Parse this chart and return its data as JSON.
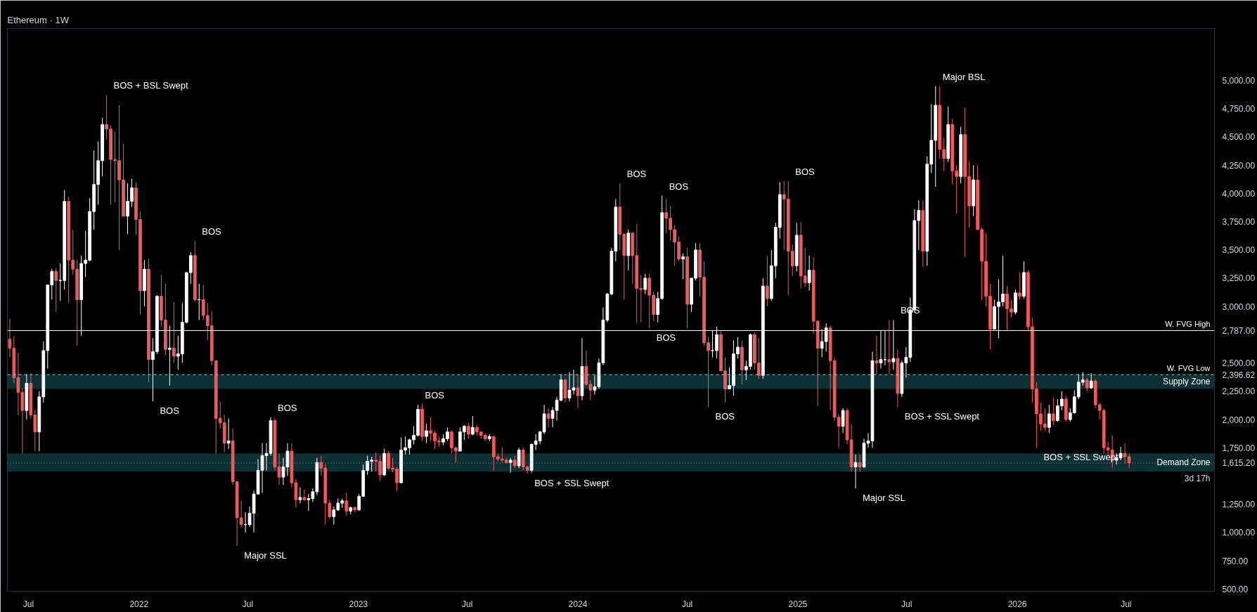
{
  "chart_data": {
    "type": "candlestick",
    "title": "Ethereum · 1W",
    "colors": [
      "#f05a5a",
      "#f05a5a",
      "#f05a5a",
      "#f05a5a",
      "#ffffff",
      "#f05a5a",
      "#f05a5a",
      "#ffffff",
      "#ffffff",
      "#ffffff",
      "#ffffff",
      "#f05a5a",
      "#ffffff",
      "#ffffff",
      "#f05a5a",
      "#f05a5a",
      "#f05a5a",
      "#ffffff",
      "#ffffff",
      "#ffffff",
      "#ffffff",
      "#ffffff",
      "#ffffff",
      "#f05a5a",
      "#f05a5a",
      "#f05a5a",
      "#f05a5a",
      "#f05a5a",
      "#ffffff",
      "#ffffff",
      "#f05a5a",
      "#f05a5a",
      "#ffffff",
      "#f05a5a",
      "#ffffff",
      "#ffffff",
      "#f05a5a",
      "#f05a5a",
      "#ffffff",
      "#f05a5a",
      "#ffffff",
      "#ffffff",
      "#ffffff",
      "#ffffff",
      "#f05a5a",
      "#ffffff",
      "#f05a5a",
      "#f05a5a",
      "#f05a5a",
      "#f05a5a",
      "#f05a5a",
      "#f05a5a",
      "#ffffff",
      "#f05a5a",
      "#f05a5a",
      "#f05a5a",
      "#ffffff",
      "#ffffff",
      "#ffffff",
      "#ffffff",
      "#ffffff",
      "#ffffff",
      "#ffffff",
      "#f05a5a",
      "#f05a5a",
      "#ffffff",
      "#ffffff",
      "#f05a5a",
      "#f05a5a",
      "#ffffff",
      "#f05a5a",
      "#ffffff",
      "#ffffff",
      "#ffffff",
      "#f05a5a",
      "#f05a5a",
      "#f05a5a",
      "#ffffff",
      "#ffffff",
      "#ffffff",
      "#f05a5a",
      "#ffffff",
      "#f05a5a",
      "#ffffff",
      "#ffffff",
      "#ffffff",
      "#ffffff",
      "#f05a5a",
      "#f05a5a",
      "#ffffff",
      "#f05a5a",
      "#f05a5a",
      "#f05a5a",
      "#ffffff",
      "#ffffff",
      "#ffffff",
      "#ffffff",
      "#ffffff",
      "#f05a5a",
      "#ffffff",
      "#f05a5a",
      "#f05a5a",
      "#f05a5a",
      "#ffffff",
      "#ffffff",
      "#f05a5a",
      "#f05a5a",
      "#ffffff",
      "#ffffff",
      "#f05a5a",
      "#ffffff",
      "#f05a5a",
      "#f05a5a",
      "#f05a5a",
      "#ffffff",
      "#f05a5a",
      "#f05a5a",
      "#f05a5a",
      "#f05a5a",
      "#ffffff",
      "#f05a5a",
      "#ffffff",
      "#f05a5a",
      "#f05a5a",
      "#ffffff",
      "#ffffff",
      "#ffffff",
      "#ffffff",
      "#f05a5a",
      "#ffffff",
      "#ffffff",
      "#ffffff",
      "#f05a5a",
      "#ffffff",
      "#ffffff",
      "#f05a5a",
      "#ffffff",
      "#f05a5a",
      "#f05a5a",
      "#ffffff",
      "#ffffff",
      "#ffffff",
      "#ffffff",
      "#ffffff",
      "#ffffff",
      "#f05a5a",
      "#f05a5a",
      "#ffffff",
      "#f05a5a",
      "#f05a5a",
      "#f05a5a",
      "#ffffff",
      "#f05a5a",
      "#f05a5a",
      "#ffffff",
      "#ffffff",
      "#f05a5a",
      "#f05a5a",
      "#f05a5a",
      "#f05a5a",
      "#ffffff",
      "#f05a5a",
      "#ffffff",
      "#ffffff",
      "#f05a5a",
      "#f05a5a",
      "#f05a5a",
      "#ffffff",
      "#ffffff",
      "#f05a5a",
      "#f05a5a",
      "#ffffff",
      "#ffffff",
      "#ffffff",
      "#f05a5a",
      "#ffffff",
      "#ffffff",
      "#f05a5a",
      "#f05a5a",
      "#ffffff",
      "#f05a5a",
      "#ffffff",
      "#ffffff",
      "#ffffff",
      "#f05a5a",
      "#f05a5a",
      "#f05a5a",
      "#ffffff",
      "#f05a5a",
      "#f05a5a",
      "#ffffff",
      "#f05a5a",
      "#f05a5a",
      "#ffffff",
      "#ffffff",
      "#f05a5a",
      "#f05a5a",
      "#f05a5a",
      "#ffffff",
      "#f05a5a",
      "#f05a5a",
      "#ffffff",
      "#f05a5a",
      "#ffffff",
      "#ffffff",
      "#ffffff",
      "#f05a5a",
      "#ffffff",
      "#ffffff",
      "#f05a5a",
      "#ffffff",
      "#f05a5a",
      "#ffffff",
      "#ffffff",
      "#ffffff",
      "#ffffff",
      "#ffffff",
      "#f05a5a",
      "#ffffff",
      "#ffffff",
      "#ffffff",
      "#f05a5a",
      "#f05a5a",
      "#ffffff",
      "#f05a5a",
      "#f05a5a",
      "#ffffff",
      "#f05a5a",
      "#f05a5a",
      "#ffffff",
      "#f05a5a",
      "#f05a5a",
      "#f05a5a",
      "#f05a5a",
      "#ffffff",
      "#ffffff",
      "#ffffff",
      "#f05a5a",
      "#f05a5a",
      "#ffffff",
      "#f05a5a",
      "#ffffff",
      "#f05a5a",
      "#f05a5a",
      "#f05a5a",
      "#f05a5a",
      "#f05a5a",
      "#ffffff",
      "#f05a5a",
      "#ffffff",
      "#ffffff",
      "#f05a5a",
      "#ffffff",
      "#ffffff",
      "#ffffff",
      "#ffffff",
      "#f05a5a",
      "#ffffff",
      "#f05a5a",
      "#f05a5a",
      "#f05a5a",
      "#f05a5a",
      "#f05a5a",
      "#ffffff",
      "#ffffff",
      "#f05a5a",
      "#f05a5a"
    ],
    "x": [
      "2021-05-31",
      "2021-06-07",
      "2021-06-14",
      "2021-06-21",
      "2021-06-28",
      "2021-07-05",
      "2021-07-12",
      "2021-07-19",
      "2021-07-26",
      "2021-08-02",
      "2021-08-09",
      "2021-08-16",
      "2021-08-23",
      "2021-08-30",
      "2021-09-06",
      "2021-09-13",
      "2021-09-20",
      "2021-09-27",
      "2021-10-04",
      "2021-10-11",
      "2021-10-18",
      "2021-10-25",
      "2021-11-01",
      "2021-11-08",
      "2021-11-15",
      "2021-11-22",
      "2021-11-29",
      "2021-12-06",
      "2021-12-13",
      "2021-12-20",
      "2021-12-27",
      "2022-01-03",
      "2022-01-10",
      "2022-01-17",
      "2022-01-24",
      "2022-01-31",
      "2022-02-07",
      "2022-02-14",
      "2022-02-21",
      "2022-02-28",
      "2022-03-07",
      "2022-03-14",
      "2022-03-21",
      "2022-03-28",
      "2022-04-04",
      "2022-04-11",
      "2022-04-18",
      "2022-04-25",
      "2022-05-02",
      "2022-05-09",
      "2022-05-16",
      "2022-05-23",
      "2022-05-30",
      "2022-06-06",
      "2022-06-13",
      "2022-06-20",
      "2022-06-27",
      "2022-07-04",
      "2022-07-11",
      "2022-07-18",
      "2022-07-25",
      "2022-08-01",
      "2022-08-08",
      "2022-08-15",
      "2022-08-22",
      "2022-08-29",
      "2022-09-05",
      "2022-09-12",
      "2022-09-19",
      "2022-09-26",
      "2022-10-03",
      "2022-10-10",
      "2022-10-17",
      "2022-10-24",
      "2022-10-31",
      "2022-11-07",
      "2022-11-14",
      "2022-11-21",
      "2022-11-28",
      "2022-12-05",
      "2022-12-12",
      "2022-12-19",
      "2022-12-26",
      "2023-01-02",
      "2023-01-09",
      "2023-01-16",
      "2023-01-23",
      "2023-01-30",
      "2023-02-06",
      "2023-02-13",
      "2023-02-20",
      "2023-02-27",
      "2023-03-06",
      "2023-03-13",
      "2023-03-20",
      "2023-03-27",
      "2023-04-03",
      "2023-04-10",
      "2023-04-17",
      "2023-04-24",
      "2023-05-01",
      "2023-05-08",
      "2023-05-15",
      "2023-05-22",
      "2023-05-29",
      "2023-06-05",
      "2023-06-12",
      "2023-06-19",
      "2023-06-26",
      "2023-07-03",
      "2023-07-10",
      "2023-07-17",
      "2023-07-24",
      "2023-07-31",
      "2023-08-07",
      "2023-08-14",
      "2023-08-21",
      "2023-08-28",
      "2023-09-04",
      "2023-09-11",
      "2023-09-18",
      "2023-09-25",
      "2023-10-02",
      "2023-10-09",
      "2023-10-16",
      "2023-10-23",
      "2023-10-30",
      "2023-11-06",
      "2023-11-13",
      "2023-11-20",
      "2023-11-27",
      "2023-12-04",
      "2023-12-11",
      "2023-12-18",
      "2023-12-25",
      "2024-01-01",
      "2024-01-08",
      "2024-01-15",
      "2024-01-22",
      "2024-01-29",
      "2024-02-05",
      "2024-02-12",
      "2024-02-19",
      "2024-02-26",
      "2024-03-04",
      "2024-03-11",
      "2024-03-18",
      "2024-03-25",
      "2024-04-01",
      "2024-04-08",
      "2024-04-15",
      "2024-04-22",
      "2024-04-29",
      "2024-05-06",
      "2024-05-13",
      "2024-05-20",
      "2024-05-27",
      "2024-06-03",
      "2024-06-10",
      "2024-06-17",
      "2024-06-24",
      "2024-07-01",
      "2024-07-08",
      "2024-07-15",
      "2024-07-22",
      "2024-07-29",
      "2024-08-05",
      "2024-08-12",
      "2024-08-19",
      "2024-08-26",
      "2024-09-02",
      "2024-09-09",
      "2024-09-16",
      "2024-09-23",
      "2024-09-30",
      "2024-10-07",
      "2024-10-14",
      "2024-10-21",
      "2024-10-28",
      "2024-11-04",
      "2024-11-11",
      "2024-11-18",
      "2024-11-25",
      "2024-12-02",
      "2024-12-09",
      "2024-12-16",
      "2024-12-23",
      "2024-12-30",
      "2025-01-06",
      "2025-01-13",
      "2025-01-20",
      "2025-01-27",
      "2025-02-03",
      "2025-02-10",
      "2025-02-17",
      "2025-02-24",
      "2025-03-03",
      "2025-03-10",
      "2025-03-17",
      "2025-03-24",
      "2025-03-31",
      "2025-04-07",
      "2025-04-14",
      "2025-04-21",
      "2025-04-28",
      "2025-05-05",
      "2025-05-12",
      "2025-05-19",
      "2025-05-26",
      "2025-06-02",
      "2025-06-09",
      "2025-06-16",
      "2025-06-23",
      "2025-06-30",
      "2025-07-07",
      "2025-07-14",
      "2025-07-21",
      "2025-07-28",
      "2025-08-04",
      "2025-08-11",
      "2025-08-18",
      "2025-08-25",
      "2025-09-01",
      "2025-09-08",
      "2025-09-15",
      "2025-09-22",
      "2025-09-29",
      "2025-10-06",
      "2025-10-13",
      "2025-10-20",
      "2025-10-27",
      "2025-11-03",
      "2025-11-10",
      "2025-11-17",
      "2025-11-24",
      "2025-12-01",
      "2025-12-08",
      "2025-12-15",
      "2025-12-22",
      "2025-12-29",
      "2026-01-05",
      "2026-01-12",
      "2026-01-19",
      "2026-01-26",
      "2026-02-02",
      "2026-02-09",
      "2026-02-16",
      "2026-02-23",
      "2026-03-02",
      "2026-03-09",
      "2026-03-16",
      "2026-03-23",
      "2026-03-30",
      "2026-04-06",
      "2026-04-13",
      "2026-04-20",
      "2026-04-27",
      "2026-05-04",
      "2026-05-11",
      "2026-05-18",
      "2026-05-25",
      "2026-06-01",
      "2026-06-08",
      "2026-06-15",
      "2026-06-22",
      "2026-06-29",
      "2026-07-06"
    ],
    "ohlc": [
      [
        2710,
        2890,
        2550,
        2630
      ],
      [
        2630,
        2740,
        2320,
        2370
      ],
      [
        2370,
        2590,
        2040,
        2240
      ],
      [
        2240,
        2280,
        1700,
        2080
      ],
      [
        2080,
        2400,
        2000,
        2320
      ],
      [
        2320,
        2410,
        2010,
        2040
      ],
      [
        2040,
        2090,
        1720,
        1890
      ],
      [
        1890,
        2250,
        1720,
        2200
      ],
      [
        2200,
        2690,
        2150,
        2610
      ],
      [
        2610,
        3190,
        2450,
        3190
      ],
      [
        3190,
        3330,
        3060,
        3310
      ],
      [
        3310,
        3340,
        2950,
        3230
      ],
      [
        3230,
        3380,
        3050,
        3230
      ],
      [
        3230,
        4030,
        3150,
        3930
      ],
      [
        3930,
        3970,
        3030,
        3410
      ],
      [
        3410,
        3680,
        3280,
        3330
      ],
      [
        3330,
        3410,
        2650,
        3060
      ],
      [
        3060,
        3450,
        2740,
        3380
      ],
      [
        3380,
        3670,
        3260,
        3410
      ],
      [
        3410,
        3960,
        3400,
        3840
      ],
      [
        3840,
        4380,
        3680,
        4080
      ],
      [
        4080,
        4460,
        3900,
        4290
      ],
      [
        4290,
        4670,
        4150,
        4610
      ],
      [
        4610,
        4870,
        4480,
        4570
      ],
      [
        4570,
        4600,
        3900,
        4300
      ],
      [
        4300,
        4550,
        3920,
        4290
      ],
      [
        4290,
        4780,
        3500,
        4120
      ],
      [
        4120,
        4440,
        3800,
        3800
      ],
      [
        3800,
        4090,
        3640,
        3930
      ],
      [
        3930,
        4130,
        3880,
        4050
      ],
      [
        4050,
        4100,
        3630,
        3770
      ],
      [
        3770,
        3840,
        2930,
        3140
      ],
      [
        3140,
        3410,
        3000,
        3330
      ],
      [
        3330,
        3420,
        2330,
        2530
      ],
      [
        2530,
        2720,
        2160,
        2600
      ],
      [
        2600,
        3100,
        2580,
        3090
      ],
      [
        3090,
        3280,
        2820,
        2880
      ],
      [
        2880,
        3200,
        2570,
        2620
      ],
      [
        2620,
        2830,
        2300,
        2630
      ],
      [
        2630,
        3040,
        2500,
        2560
      ],
      [
        2560,
        2740,
        2440,
        2580
      ],
      [
        2580,
        3030,
        2500,
        2860
      ],
      [
        2860,
        3300,
        2850,
        3300
      ],
      [
        3300,
        3480,
        3200,
        3450
      ],
      [
        3450,
        3580,
        3040,
        3060
      ],
      [
        3060,
        3200,
        2880,
        3060
      ],
      [
        3060,
        3190,
        2880,
        2920
      ],
      [
        2920,
        3030,
        2700,
        2830
      ],
      [
        2830,
        2960,
        2480,
        2520
      ],
      [
        2520,
        2520,
        1700,
        2010
      ],
      [
        2010,
        2160,
        1920,
        1970
      ],
      [
        1970,
        2040,
        1710,
        1790
      ],
      [
        1790,
        2010,
        1740,
        1810
      ],
      [
        1810,
        1920,
        1420,
        1450
      ],
      [
        1450,
        1450,
        880,
        1130
      ],
      [
        1130,
        1280,
        1050,
        1070
      ],
      [
        1070,
        1180,
        1000,
        1070
      ],
      [
        1070,
        1230,
        1050,
        1170
      ],
      [
        1170,
        1370,
        1000,
        1340
      ],
      [
        1340,
        1650,
        1340,
        1550
      ],
      [
        1550,
        1790,
        1350,
        1680
      ],
      [
        1680,
        1790,
        1550,
        1700
      ],
      [
        1700,
        2020,
        1680,
        1990
      ],
      [
        1990,
        2010,
        1550,
        1580
      ],
      [
        1580,
        1700,
        1420,
        1490
      ],
      [
        1490,
        1660,
        1420,
        1580
      ],
      [
        1580,
        1790,
        1500,
        1720
      ],
      [
        1720,
        1790,
        1400,
        1440
      ],
      [
        1440,
        1470,
        1220,
        1290
      ],
      [
        1290,
        1400,
        1260,
        1310
      ],
      [
        1310,
        1380,
        1280,
        1290
      ],
      [
        1290,
        1340,
        1190,
        1300
      ],
      [
        1300,
        1390,
        1270,
        1360
      ],
      [
        1360,
        1660,
        1330,
        1620
      ],
      [
        1620,
        1680,
        1500,
        1570
      ],
      [
        1570,
        1610,
        1070,
        1260
      ],
      [
        1260,
        1290,
        1120,
        1140
      ],
      [
        1140,
        1230,
        1070,
        1200
      ],
      [
        1200,
        1300,
        1190,
        1260
      ],
      [
        1260,
        1300,
        1220,
        1280
      ],
      [
        1280,
        1350,
        1150,
        1190
      ],
      [
        1190,
        1230,
        1160,
        1220
      ],
      [
        1220,
        1230,
        1180,
        1200
      ],
      [
        1200,
        1340,
        1190,
        1320
      ],
      [
        1320,
        1600,
        1320,
        1550
      ],
      [
        1550,
        1680,
        1510,
        1630
      ],
      [
        1630,
        1670,
        1540,
        1640
      ],
      [
        1640,
        1710,
        1540,
        1630
      ],
      [
        1630,
        1680,
        1460,
        1510
      ],
      [
        1510,
        1740,
        1500,
        1700
      ],
      [
        1700,
        1720,
        1560,
        1570
      ],
      [
        1570,
        1660,
        1530,
        1560
      ],
      [
        1560,
        1580,
        1370,
        1440
      ],
      [
        1440,
        1840,
        1440,
        1730
      ],
      [
        1730,
        1850,
        1690,
        1750
      ],
      [
        1750,
        1830,
        1690,
        1820
      ],
      [
        1820,
        1940,
        1780,
        1860
      ],
      [
        1860,
        2130,
        1850,
        2090
      ],
      [
        2090,
        2140,
        1810,
        1850
      ],
      [
        1850,
        1960,
        1790,
        1900
      ],
      [
        1900,
        2020,
        1810,
        1880
      ],
      [
        1880,
        1900,
        1740,
        1810
      ],
      [
        1810,
        1850,
        1760,
        1800
      ],
      [
        1800,
        1870,
        1770,
        1830
      ],
      [
        1830,
        1930,
        1810,
        1890
      ],
      [
        1890,
        1900,
        1700,
        1750
      ],
      [
        1750,
        1760,
        1620,
        1720
      ],
      [
        1720,
        1930,
        1720,
        1890
      ],
      [
        1890,
        1950,
        1820,
        1940
      ],
      [
        1940,
        1970,
        1830,
        1870
      ],
      [
        1870,
        2030,
        1860,
        1930
      ],
      [
        1930,
        1950,
        1860,
        1890
      ],
      [
        1890,
        1890,
        1830,
        1860
      ],
      [
        1860,
        1880,
        1810,
        1830
      ],
      [
        1830,
        1870,
        1810,
        1850
      ],
      [
        1850,
        1850,
        1550,
        1670
      ],
      [
        1670,
        1700,
        1630,
        1650
      ],
      [
        1650,
        1750,
        1620,
        1640
      ],
      [
        1640,
        1660,
        1610,
        1620
      ],
      [
        1620,
        1660,
        1530,
        1640
      ],
      [
        1640,
        1680,
        1570,
        1590
      ],
      [
        1590,
        1750,
        1570,
        1730
      ],
      [
        1730,
        1750,
        1550,
        1580
      ],
      [
        1580,
        1590,
        1520,
        1550
      ],
      [
        1550,
        1790,
        1530,
        1780
      ],
      [
        1780,
        1870,
        1730,
        1810
      ],
      [
        1810,
        1900,
        1780,
        1890
      ],
      [
        1890,
        2130,
        1870,
        2050
      ],
      [
        2050,
        2100,
        1930,
        2010
      ],
      [
        2010,
        2110,
        1930,
        2080
      ],
      [
        2080,
        2200,
        1990,
        2170
      ],
      [
        2170,
        2400,
        2160,
        2350
      ],
      [
        2350,
        2360,
        2150,
        2190
      ],
      [
        2190,
        2420,
        2160,
        2260
      ],
      [
        2260,
        2440,
        2220,
        2280
      ],
      [
        2280,
        2400,
        2100,
        2210
      ],
      [
        2210,
        2720,
        2170,
        2470
      ],
      [
        2470,
        2610,
        2300,
        2310
      ],
      [
        2310,
        2350,
        2170,
        2260
      ],
      [
        2260,
        2390,
        2220,
        2290
      ],
      [
        2290,
        2540,
        2270,
        2500
      ],
      [
        2500,
        2990,
        2480,
        2880
      ],
      [
        2880,
        3120,
        2860,
        3110
      ],
      [
        3110,
        3520,
        3100,
        3490
      ],
      [
        3490,
        3950,
        3400,
        3880
      ],
      [
        3880,
        4090,
        3500,
        3640
      ],
      [
        3640,
        3650,
        3060,
        3450
      ],
      [
        3450,
        3680,
        3320,
        3650
      ],
      [
        3650,
        3650,
        3200,
        3450
      ],
      [
        3450,
        3730,
        2850,
        3160
      ],
      [
        3160,
        3280,
        2860,
        3150
      ],
      [
        3150,
        3290,
        3110,
        3250
      ],
      [
        3250,
        3290,
        2810,
        3100
      ],
      [
        3100,
        3130,
        2870,
        2930
      ],
      [
        2930,
        3130,
        2860,
        3070
      ],
      [
        3070,
        3980,
        3060,
        3830
      ],
      [
        3830,
        3950,
        3650,
        3780
      ],
      [
        3780,
        3890,
        3580,
        3680
      ],
      [
        3680,
        3720,
        3360,
        3570
      ],
      [
        3570,
        3620,
        3400,
        3420
      ],
      [
        3420,
        3470,
        3240,
        3440
      ],
      [
        3440,
        3520,
        2810,
        3020
      ],
      [
        3020,
        3250,
        2950,
        3250
      ],
      [
        3250,
        3560,
        3230,
        3500
      ],
      [
        3500,
        3560,
        3090,
        3260
      ],
      [
        3260,
        3400,
        2650,
        2680
      ],
      [
        2680,
        2730,
        2110,
        2610
      ],
      [
        2610,
        2790,
        2550,
        2610
      ],
      [
        2610,
        2820,
        2540,
        2750
      ],
      [
        2750,
        2780,
        2430,
        2430
      ],
      [
        2430,
        2550,
        2150,
        2270
      ],
      [
        2270,
        2460,
        2270,
        2300
      ],
      [
        2300,
        2700,
        2210,
        2580
      ],
      [
        2580,
        2730,
        2540,
        2640
      ],
      [
        2640,
        2700,
        2310,
        2440
      ],
      [
        2440,
        2520,
        2350,
        2470
      ],
      [
        2470,
        2760,
        2440,
        2750
      ],
      [
        2750,
        2770,
        2440,
        2500
      ],
      [
        2500,
        2720,
        2360,
        2390
      ],
      [
        2390,
        3250,
        2360,
        3180
      ],
      [
        3180,
        3450,
        3000,
        3070
      ],
      [
        3070,
        3500,
        3050,
        3360
      ],
      [
        3360,
        3740,
        3250,
        3700
      ],
      [
        3700,
        4100,
        3600,
        3990
      ],
      [
        3990,
        4110,
        3500,
        3950
      ],
      [
        3950,
        4110,
        3100,
        3490
      ],
      [
        3490,
        3550,
        3270,
        3360
      ],
      [
        3360,
        3740,
        3310,
        3630
      ],
      [
        3630,
        3750,
        3160,
        3270
      ],
      [
        3270,
        3520,
        3170,
        3210
      ],
      [
        3210,
        3450,
        3140,
        3320
      ],
      [
        3320,
        3440,
        2760,
        2870
      ],
      [
        2870,
        2880,
        2120,
        2630
      ],
      [
        2630,
        2800,
        2550,
        2690
      ],
      [
        2690,
        2850,
        2600,
        2810
      ],
      [
        2810,
        2830,
        2080,
        2520
      ],
      [
        2520,
        2550,
        1990,
        2020
      ],
      [
        2020,
        2050,
        1750,
        1940
      ],
      [
        1940,
        2100,
        1880,
        2080
      ],
      [
        2080,
        2100,
        1780,
        1820
      ],
      [
        1820,
        1960,
        1540,
        1580
      ],
      [
        1580,
        1690,
        1390,
        1620
      ],
      [
        1620,
        1690,
        1540,
        1580
      ],
      [
        1580,
        1830,
        1570,
        1790
      ],
      [
        1790,
        1880,
        1750,
        1810
      ],
      [
        1810,
        2600,
        1750,
        2520
      ],
      [
        2520,
        2740,
        2400,
        2500
      ],
      [
        2500,
        2790,
        2450,
        2530
      ],
      [
        2530,
        2790,
        2480,
        2530
      ],
      [
        2530,
        2880,
        2400,
        2510
      ],
      [
        2510,
        2880,
        2440,
        2540
      ],
      [
        2540,
        2620,
        2110,
        2230
      ],
      [
        2230,
        2520,
        2200,
        2500
      ],
      [
        2500,
        2640,
        2370,
        2550
      ],
      [
        2550,
        3080,
        2510,
        2970
      ],
      [
        2970,
        3860,
        2950,
        3760
      ],
      [
        3760,
        3940,
        3500,
        3850
      ],
      [
        3850,
        3940,
        3350,
        3490
      ],
      [
        3490,
        4330,
        3360,
        4260
      ],
      [
        4260,
        4790,
        4180,
        4470
      ],
      [
        4470,
        4950,
        4060,
        4780
      ],
      [
        4780,
        4950,
        4310,
        4390
      ],
      [
        4390,
        4490,
        4200,
        4310
      ],
      [
        4310,
        4770,
        4280,
        4610
      ],
      [
        4610,
        4660,
        4080,
        4200
      ],
      [
        4200,
        4250,
        3820,
        4150
      ],
      [
        4150,
        4590,
        4090,
        4520
      ],
      [
        4520,
        4760,
        3440,
        4150
      ],
      [
        4150,
        4290,
        3700,
        3890
      ],
      [
        3890,
        4250,
        3800,
        4120
      ],
      [
        4120,
        4250,
        3680,
        3680
      ],
      [
        3680,
        3700,
        3060,
        3400
      ],
      [
        3400,
        3650,
        3000,
        3090
      ],
      [
        3090,
        3200,
        2620,
        2800
      ],
      [
        2800,
        3060,
        2800,
        3000
      ],
      [
        3000,
        3240,
        2720,
        3040
      ],
      [
        3040,
        3450,
        3000,
        3110
      ],
      [
        3110,
        3180,
        2780,
        2980
      ],
      [
        2980,
        3060,
        2900,
        2950
      ],
      [
        2950,
        3150,
        2930,
        3120
      ],
      [
        3120,
        3300,
        3060,
        3090
      ],
      [
        3090,
        3400,
        3070,
        3300
      ],
      [
        3300,
        3320,
        2780,
        2820
      ],
      [
        2820,
        2900,
        2150,
        2270
      ],
      [
        2270,
        2330,
        1750,
        2050
      ],
      [
        2050,
        2150,
        1900,
        1960
      ],
      [
        1960,
        2100,
        1900,
        1930
      ],
      [
        1930,
        2130,
        1880,
        2050
      ],
      [
        2050,
        2200,
        1950,
        1990
      ],
      [
        1990,
        2180,
        1980,
        2120
      ],
      [
        2120,
        2250,
        2080,
        2180
      ],
      [
        2180,
        2210,
        1980,
        2000
      ],
      [
        2000,
        2100,
        1980,
        2060
      ],
      [
        2060,
        2260,
        2050,
        2200
      ],
      [
        2200,
        2400,
        2180,
        2330
      ],
      [
        2330,
        2420,
        2300,
        2350
      ],
      [
        2350,
        2370,
        2250,
        2280
      ],
      [
        2280,
        2410,
        2270,
        2340
      ],
      [
        2340,
        2360,
        2100,
        2130
      ],
      [
        2130,
        2150,
        2000,
        2080
      ],
      [
        2080,
        2100,
        1700,
        1750
      ],
      [
        1750,
        1800,
        1680,
        1730
      ],
      [
        1730,
        1860,
        1570,
        1640
      ],
      [
        1640,
        1700,
        1600,
        1660
      ],
      [
        1660,
        1760,
        1640,
        1700
      ],
      [
        1700,
        1790,
        1610,
        1670
      ],
      [
        1670,
        1700,
        1570,
        1615.2
      ]
    ],
    "xlim": [
      "2021-05-27",
      "2026-11-25"
    ],
    "xticks": [
      {
        "value": "2021-07-01",
        "label": "Jul"
      },
      {
        "value": "2022-01-01",
        "label": "2022"
      },
      {
        "value": "2022-07-01",
        "label": "Jul"
      },
      {
        "value": "2023-01-01",
        "label": "2023"
      },
      {
        "value": "2023-07-01",
        "label": "Jul"
      },
      {
        "value": "2024-01-01",
        "label": "2024"
      },
      {
        "value": "2024-07-01",
        "label": "Jul"
      },
      {
        "value": "2025-01-01",
        "label": "2025"
      },
      {
        "value": "2025-07-01",
        "label": "Jul"
      },
      {
        "value": "2026-01-01",
        "label": "2026"
      },
      {
        "value": "2026-07-01",
        "label": "Jul"
      }
    ],
    "ylim": [
      480,
      5460
    ],
    "yticks": [
      {
        "value": 500,
        "label": "500.00"
      },
      {
        "value": 750,
        "label": "750.00"
      },
      {
        "value": 1000,
        "label": "1,000.00"
      },
      {
        "value": 1250,
        "label": "1,250.00"
      },
      {
        "value": 1615.2,
        "label": "1,615.20"
      },
      {
        "value": 1750,
        "label": "1,750.00"
      },
      {
        "value": 2000,
        "label": "2,000.00"
      },
      {
        "value": 2250,
        "label": "2,250.00"
      },
      {
        "value": 2396.62,
        "label": "2,396.62"
      },
      {
        "value": 2500,
        "label": "2,500.00"
      },
      {
        "value": 2787,
        "label": "2,787.00"
      },
      {
        "value": 3000,
        "label": "3,000.00"
      },
      {
        "value": 3250,
        "label": "3,250.00"
      },
      {
        "value": 3500,
        "label": "3,500.00"
      },
      {
        "value": 3750,
        "label": "3,750.00"
      },
      {
        "value": 4000,
        "label": "4,000.00"
      },
      {
        "value": 4250,
        "label": "4,250.00"
      },
      {
        "value": 4500,
        "label": "4,500.00"
      },
      {
        "value": 4750,
        "label": "4,750.00"
      },
      {
        "value": 5000,
        "label": "5,000.00"
      }
    ],
    "ref_lines": [
      {
        "axis": "y",
        "value": 2787,
        "label": "W. FVG High",
        "color": "#ffffff",
        "line_style": "solid"
      },
      {
        "axis": "y",
        "value": 2396.62,
        "label": "W. FVG Low",
        "color": "#bbbbbb",
        "line_style": "dashed"
      },
      {
        "axis": "y",
        "value": 1615.2,
        "label": null,
        "color": "#888888",
        "line_style": "dotted"
      }
    ],
    "bands": [
      {
        "axis": "y",
        "from": 2270,
        "to": 2400,
        "label": "Supply Zone",
        "color": "#0f3d42"
      },
      {
        "axis": "y",
        "from": 1540,
        "to": 1700,
        "label": "Demand Zone",
        "color": "#0f3d42"
      }
    ],
    "annotations": [
      {
        "text": "BOS + BSL Swept",
        "x": "2021-11-08",
        "y": 4870
      },
      {
        "text": "BOS",
        "x": "2022-04-04",
        "y": 3580
      },
      {
        "text": "BOS",
        "x": "2022-01-24",
        "y": 2160
      },
      {
        "text": "BOS",
        "x": "2022-08-08",
        "y": 2020
      },
      {
        "text": "Major SSL",
        "x": "2022-06-13",
        "y": 880
      },
      {
        "text": "BOS",
        "x": "2023-04-10",
        "y": 2130
      },
      {
        "text": "BOS + SSL Swept",
        "x": "2023-10-09",
        "y": 1520
      },
      {
        "text": "BOS",
        "x": "2024-03-11",
        "y": 4090
      },
      {
        "text": "BOS",
        "x": "2024-05-20",
        "y": 3980
      },
      {
        "text": "BOS",
        "x": "2024-04-29",
        "y": 2810
      },
      {
        "text": "BOS",
        "x": "2024-08-05",
        "y": 2110
      },
      {
        "text": "BOS",
        "x": "2024-12-16",
        "y": 4110
      },
      {
        "text": "BOS",
        "x": "2025-06-09",
        "y": 2880
      },
      {
        "text": "BOS + SSL Swept",
        "x": "2025-06-16",
        "y": 2110
      },
      {
        "text": "Major BSL",
        "x": "2025-08-18",
        "y": 4950
      },
      {
        "text": "Major SSL",
        "x": "2025-04-07",
        "y": 1390
      },
      {
        "text": "BOS + SSL Swept",
        "x": "2026-02-02",
        "y": 1750
      },
      "3d 17h"
    ]
  }
}
